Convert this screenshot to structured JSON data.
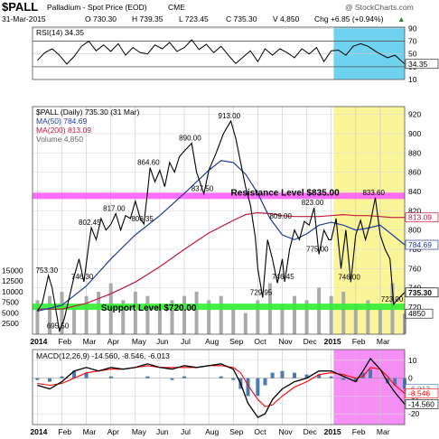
{
  "header": {
    "symbol": "$PALL",
    "description": "Palladium - Spot Price (EOD)",
    "exchange": "CME",
    "watermark": "@ StockCharts.com",
    "date": "31-Mar-2015",
    "quote": {
      "open": "O 730.30",
      "high": "H 739.35",
      "low": "L 723.45",
      "close": "C 735.30",
      "volume": "V 4,850",
      "change": "Chg +6.85 (+0.94%)",
      "arrow": "▲"
    }
  },
  "colors": {
    "price": "#000000",
    "ma50": "#1f3a99",
    "ma200": "#c0183a",
    "volume": "#aaaaaa",
    "resistance": "#ff55ff",
    "support": "#33ee33",
    "highlight_rsi": "#6fd2ee",
    "highlight_price": "#fbf59a",
    "highlight_macd": "#f58ff5",
    "macd_line": "#000000",
    "signal_line": "#ff0000",
    "histogram": "#4a7ab0"
  },
  "chart_data": [
    {
      "type": "line",
      "panel": "RSI",
      "title": "RSI(14) 34.35",
      "y_ticks": [
        10,
        30,
        50,
        70,
        90
      ],
      "ylim": [
        10,
        92
      ],
      "reference_lines": [
        30,
        70
      ],
      "current_value": "34.35",
      "series": [
        {
          "name": "RSI(14)",
          "x": [
            0,
            0.3,
            0.6,
            0.9,
            1.2,
            1.5,
            1.8,
            2.1,
            2.4,
            2.7,
            3.0,
            3.3,
            3.6,
            3.9,
            4.2,
            4.5,
            4.8,
            5.1,
            5.4,
            5.7,
            6.0,
            6.3,
            6.6,
            6.9,
            7.2,
            7.5,
            7.8,
            8.1,
            8.4,
            8.7,
            9.0,
            9.3,
            9.6,
            9.9,
            10.2,
            10.5,
            10.8,
            11.1,
            11.4,
            11.7,
            12.0,
            12.3,
            12.6,
            12.9,
            13.2,
            13.5,
            13.9,
            14.3,
            14.6,
            15.0
          ],
          "values": [
            40,
            52,
            58,
            48,
            34,
            46,
            62,
            70,
            55,
            64,
            54,
            66,
            48,
            60,
            52,
            50,
            64,
            58,
            68,
            54,
            60,
            72,
            57,
            65,
            52,
            62,
            48,
            35,
            45,
            55,
            38,
            58,
            48,
            58,
            52,
            44,
            58,
            50,
            60,
            38,
            55,
            56,
            48,
            62,
            66,
            62,
            52,
            44,
            48,
            34.35
          ]
        }
      ]
    },
    {
      "type": "line",
      "panel": "Price",
      "title": "$PALL (Daily) 735.30 (31 Mar)",
      "legend": [
        "$PALL (Daily) 735.30 (31 Mar)",
        "MA(50) 784.69",
        "MA(200) 813.09",
        "Volume 4,850"
      ],
      "y_ticks": [
        720,
        740,
        760,
        780,
        800,
        820,
        840,
        860,
        880,
        900,
        920
      ],
      "ylim": [
        692,
        928
      ],
      "volume_ticks": [
        "2500",
        "5000",
        "7500",
        "10000",
        "12500",
        "15000"
      ],
      "volume_range": [
        0,
        15000
      ],
      "x_labels": [
        "2014",
        "Feb",
        "Mar",
        "Apr",
        "May",
        "Jun",
        "Jul",
        "Aug",
        "Sep",
        "Oct",
        "Nov",
        "Dec",
        "2015",
        "Feb",
        "Mar"
      ],
      "x_label_positions": [
        0,
        1,
        2,
        3,
        4,
        5,
        6,
        7,
        8,
        9,
        10,
        11,
        12,
        13,
        14
      ],
      "x_range": [
        -0.2,
        15.0
      ],
      "annotations": [
        {
          "text": "753.30",
          "x": 0.45,
          "y": 753
        },
        {
          "text": "695.50",
          "x": 0.9,
          "y": 695.5
        },
        {
          "text": "746.30",
          "x": 1.9,
          "y": 746.3
        },
        {
          "text": "802.45",
          "x": 2.2,
          "y": 802.45
        },
        {
          "text": "817.00",
          "x": 3.2,
          "y": 817
        },
        {
          "text": "806.35",
          "x": 4.35,
          "y": 806.35
        },
        {
          "text": "864.60",
          "x": 4.6,
          "y": 864.6
        },
        {
          "text": "890.00",
          "x": 6.3,
          "y": 890
        },
        {
          "text": "837.50",
          "x": 6.8,
          "y": 837.5
        },
        {
          "text": "913.00",
          "x": 7.9,
          "y": 913
        },
        {
          "text": "809.00",
          "x": 10.0,
          "y": 809
        },
        {
          "text": "823.00",
          "x": 11.3,
          "y": 823
        },
        {
          "text": "746.45",
          "x": 10.1,
          "y": 746.45
        },
        {
          "text": "729.95",
          "x": 9.2,
          "y": 729.95
        },
        {
          "text": "775.00",
          "x": 11.5,
          "y": 775
        },
        {
          "text": "746.00",
          "x": 12.8,
          "y": 746
        },
        {
          "text": "833.60",
          "x": 13.8,
          "y": 833.6
        },
        {
          "text": "723.00",
          "x": 14.55,
          "y": 723
        }
      ],
      "resistance": {
        "label": "Resistance Level $835.00",
        "value": 835
      },
      "support": {
        "label": "Support Level $720.00",
        "value": 720
      },
      "series": [
        {
          "name": "$PALL (Daily)",
          "x": [
            0,
            0.2,
            0.45,
            0.6,
            0.9,
            1.1,
            1.3,
            1.5,
            1.7,
            1.9,
            2.1,
            2.2,
            2.4,
            2.6,
            2.8,
            3.0,
            3.2,
            3.4,
            3.6,
            3.8,
            4.0,
            4.2,
            4.35,
            4.5,
            4.6,
            4.8,
            5.0,
            5.2,
            5.4,
            5.6,
            5.8,
            6.0,
            6.3,
            6.5,
            6.8,
            7.0,
            7.3,
            7.6,
            7.9,
            8.1,
            8.3,
            8.5,
            8.7,
            8.9,
            9.0,
            9.2,
            9.4,
            9.6,
            9.8,
            10.0,
            10.1,
            10.3,
            10.5,
            10.7,
            10.9,
            11.1,
            11.3,
            11.5,
            11.7,
            11.9,
            12.0,
            12.2,
            12.4,
            12.6,
            12.8,
            13.0,
            13.2,
            13.4,
            13.6,
            13.8,
            14.0,
            14.2,
            14.4,
            14.55,
            14.7,
            15.0
          ],
          "values": [
            716,
            724,
            753,
            740,
            695.5,
            708,
            730,
            752,
            770,
            746.3,
            785,
            802.45,
            790,
            812,
            800,
            806,
            817,
            800,
            815,
            812,
            830,
            812,
            806.35,
            840,
            864.6,
            850,
            862,
            845,
            870,
            860,
            876,
            882,
            890,
            860,
            837.5,
            862,
            880,
            900,
            913,
            895,
            870,
            845,
            826,
            792,
            760,
            730,
            790,
            770,
            745,
            770,
            746.45,
            780,
            800,
            790,
            809,
            805,
            823,
            775,
            800,
            790,
            790,
            812,
            760,
            800,
            746,
            795,
            810,
            790,
            808,
            833.6,
            795,
            780,
            770,
            723,
            728,
            735.3
          ]
        },
        {
          "name": "MA(50)",
          "x": [
            0,
            1,
            2,
            3,
            4,
            5,
            6,
            7,
            7.5,
            8,
            8.5,
            9,
            9.5,
            10,
            10.5,
            11,
            11.5,
            12,
            12.5,
            13,
            13.5,
            14,
            14.5,
            15.0
          ],
          "values": [
            716,
            722,
            742,
            770,
            795,
            815,
            838,
            862,
            872,
            870,
            858,
            838,
            812,
            795,
            790,
            796,
            805,
            808,
            805,
            800,
            802,
            805,
            795,
            784.69
          ]
        },
        {
          "name": "MA(200)",
          "x": [
            0,
            1,
            2,
            3,
            4,
            5,
            6,
            7,
            8,
            8.5,
            9,
            9.5,
            10,
            10.5,
            11,
            11.5,
            12,
            12.5,
            13,
            13.5,
            14,
            14.5,
            15.0
          ],
          "values": [
            718,
            718,
            724,
            734,
            746,
            762,
            780,
            797,
            810,
            816,
            818,
            817,
            815,
            814,
            814,
            814,
            815,
            816,
            815,
            815,
            814,
            813,
            813.09
          ]
        },
        {
          "name": "Volume",
          "x": [
            0,
            0.5,
            1,
            1.5,
            2,
            2.5,
            3,
            3.5,
            4,
            4.5,
            5,
            5.5,
            6,
            6.5,
            7,
            7.5,
            8,
            8.5,
            9,
            9.5,
            10,
            10.5,
            11,
            11.5,
            12,
            12.5,
            13,
            13.5,
            14,
            14.5,
            15.0
          ],
          "values": [
            8000,
            9000,
            10000,
            6000,
            9000,
            10000,
            12000,
            8000,
            10000,
            9000,
            7000,
            8000,
            9000,
            10000,
            8000,
            9000,
            6000,
            5000,
            8000,
            12000,
            7000,
            9000,
            8000,
            11000,
            9000,
            10000,
            7000,
            8000,
            6000,
            12000,
            4850
          ]
        }
      ]
    },
    {
      "type": "line",
      "panel": "MACD",
      "title": "MACD(12,26,9) -14.560, -8.546, -6.013",
      "y_ticks": [
        -20,
        -10,
        0,
        10
      ],
      "ylim": [
        -26,
        16
      ],
      "current_values": [
        "-6.013",
        "-8.546",
        "-14.560"
      ],
      "x_labels": [
        "2014",
        "Feb",
        "Mar",
        "Apr",
        "May",
        "Jun",
        "Jul",
        "Aug",
        "Sep",
        "Oct",
        "Nov",
        "Dec",
        "2015",
        "Feb",
        "Mar"
      ],
      "x_label_positions": [
        0,
        1,
        2,
        3,
        4,
        5,
        6,
        7,
        8,
        9,
        10,
        11,
        12,
        13,
        14
      ],
      "x_range": [
        -0.2,
        15.0
      ],
      "series": [
        {
          "name": "MACD",
          "x": [
            0,
            0.5,
            1,
            1.5,
            2,
            2.5,
            3,
            3.5,
            4,
            4.5,
            5,
            5.5,
            6,
            6.5,
            7,
            7.5,
            8,
            8.3,
            8.6,
            9,
            9.3,
            9.6,
            10,
            10.5,
            11,
            11.5,
            12,
            12.5,
            13,
            13.3,
            13.6,
            14,
            14.3,
            14.6,
            15.0
          ],
          "values": [
            -4,
            -6,
            -2,
            4,
            6,
            4,
            6,
            5,
            6,
            8,
            6,
            5,
            7,
            6,
            7,
            8,
            5,
            -3,
            -14,
            -22,
            -20,
            -12,
            -6,
            -2,
            0,
            4,
            4,
            1,
            -2,
            4,
            11,
            5,
            -2,
            -8,
            -14.56
          ]
        },
        {
          "name": "Signal",
          "x": [
            0,
            0.5,
            1,
            1.5,
            2,
            2.5,
            3,
            3.5,
            4,
            4.5,
            5,
            5.5,
            6,
            6.5,
            7,
            7.5,
            8,
            8.3,
            8.6,
            9,
            9.3,
            9.6,
            10,
            10.5,
            11,
            11.5,
            12,
            12.5,
            13,
            13.3,
            13.6,
            14,
            14.3,
            14.6,
            15.0
          ],
          "values": [
            -3,
            -4,
            -3,
            0,
            3,
            4,
            5,
            5,
            6,
            7,
            6,
            6,
            6,
            6,
            7,
            7,
            6,
            3,
            -4,
            -12,
            -16,
            -15,
            -10,
            -5,
            -2,
            2,
            3,
            2,
            0,
            1,
            6,
            5,
            1,
            -4,
            -8.546
          ]
        },
        {
          "name": "Histogram",
          "x": [
            0,
            0.5,
            1,
            1.5,
            2,
            2.5,
            3,
            3.5,
            4,
            4.5,
            5,
            5.5,
            6,
            6.5,
            7,
            7.5,
            8,
            8.3,
            8.6,
            9,
            9.3,
            9.6,
            10,
            10.5,
            11,
            11.5,
            12,
            12.5,
            13,
            13.3,
            13.6,
            14,
            14.3,
            14.6,
            15.0
          ],
          "values": [
            -1,
            -2,
            1,
            4,
            3,
            0,
            1,
            0,
            0,
            1,
            0,
            -1,
            1,
            0,
            0,
            1,
            -1,
            -6,
            -10,
            -10,
            -4,
            3,
            4,
            3,
            2,
            2,
            1,
            -1,
            -2,
            3,
            5,
            0,
            -3,
            -4,
            -6.013
          ]
        }
      ]
    }
  ]
}
